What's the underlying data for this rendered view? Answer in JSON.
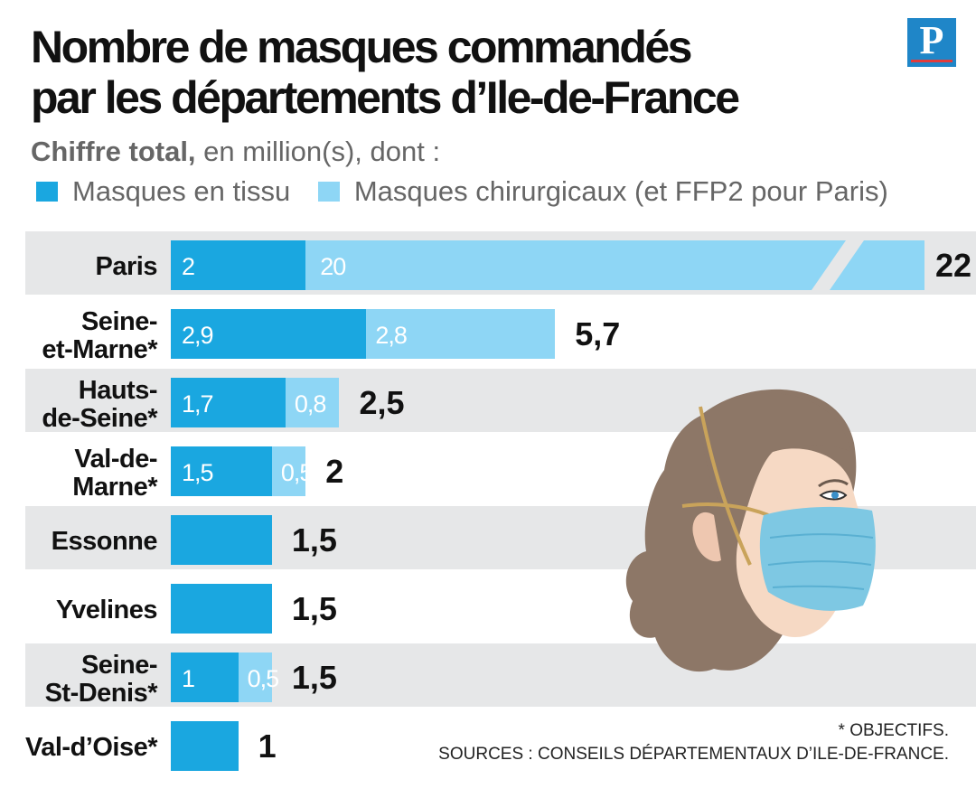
{
  "header": {
    "title_line1": "Nombre de masques commandés",
    "title_line2": "par les départements d’Ile-de-France",
    "subtitle_bold": "Chiffre total,",
    "subtitle_rest": " en million(s), dont :",
    "logo": "P"
  },
  "legend": [
    {
      "label": "Masques en tissu",
      "color": "#1aa7e0"
    },
    {
      "label": "Masques chirurgicaux (et FFP2 pour Paris)",
      "color": "#8ed6f5"
    }
  ],
  "notes": {
    "objectifs": "* OBJECTIFS.",
    "source": "SOURCES : CONSEILS DÉPARTEMENTAUX D’ILE-DE-FRANCE."
  },
  "chart_data": {
    "type": "bar",
    "orientation": "horizontal",
    "stacked": true,
    "title": "Nombre de masques commandés par les départements d’Ile-de-France",
    "subtitle": "Chiffre total, en million(s), dont :",
    "unit": "million(s)",
    "axis_break": "Paris bar broken (20)",
    "categories": [
      {
        "lines": [
          "Paris"
        ]
      },
      {
        "lines": [
          "Seine-",
          "et-Marne*"
        ]
      },
      {
        "lines": [
          "Hauts-",
          "de-Seine*"
        ]
      },
      {
        "lines": [
          "Val-de-",
          "Marne*"
        ]
      },
      {
        "lines": [
          "Essonne"
        ]
      },
      {
        "lines": [
          "Yvelines"
        ]
      },
      {
        "lines": [
          "Seine-",
          "St-Denis*"
        ]
      },
      {
        "lines": [
          "Val-d’Oise*"
        ]
      }
    ],
    "series": [
      {
        "name": "Masques en tissu",
        "color": "#1aa7e0",
        "values": [
          2,
          2.9,
          1.7,
          1.5,
          1.5,
          1.5,
          1,
          1
        ],
        "labels": [
          "2",
          "2,9",
          "1,7",
          "1,5",
          "",
          "",
          "1",
          ""
        ]
      },
      {
        "name": "Masques chirurgicaux (et FFP2 pour Paris)",
        "color": "#8ed6f5",
        "values": [
          20,
          2.8,
          0.8,
          0.5,
          0,
          0,
          0.5,
          0
        ],
        "labels": [
          "20",
          "2,8",
          "0,8",
          "0,5",
          "",
          "",
          "0,5",
          ""
        ]
      }
    ],
    "totals": [
      "22",
      "5,7",
      "2,5",
      "2",
      "1,5",
      "1,5",
      "1,5",
      "1"
    ]
  }
}
